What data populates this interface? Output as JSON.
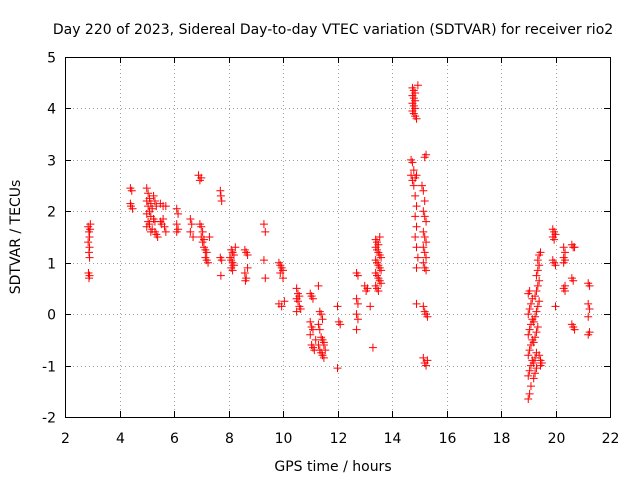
{
  "chart_data": {
    "type": "scatter",
    "title": "Day 220 of 2023, Sidereal Day-to-day VTEC variation (SDTVAR) for receiver rio2",
    "xlabel": "GPS time / hours",
    "ylabel": "SDTVAR / TECUs",
    "xlim": [
      2,
      22
    ],
    "ylim": [
      -2,
      5
    ],
    "xticks": [
      2,
      4,
      6,
      8,
      10,
      12,
      14,
      16,
      18,
      20,
      22
    ],
    "yticks": [
      -2,
      -1,
      0,
      1,
      2,
      3,
      4,
      5
    ],
    "grid": true,
    "marker": "+",
    "color": "#ff0000",
    "series": [
      {
        "name": "SDTVAR",
        "points": [
          [
            2.85,
            1.7
          ],
          [
            2.88,
            1.6
          ],
          [
            2.9,
            1.5
          ],
          [
            2.85,
            1.4
          ],
          [
            2.9,
            1.3
          ],
          [
            2.88,
            1.2
          ],
          [
            2.92,
            1.65
          ],
          [
            2.86,
            0.8
          ],
          [
            2.9,
            0.75
          ],
          [
            2.88,
            0.7
          ],
          [
            2.93,
            1.75
          ],
          [
            2.9,
            1.1
          ],
          [
            4.4,
            2.45
          ],
          [
            4.45,
            2.4
          ],
          [
            4.42,
            2.1
          ],
          [
            4.48,
            2.05
          ],
          [
            4.4,
            2.15
          ],
          [
            5.0,
            2.45
          ],
          [
            5.05,
            2.35
          ],
          [
            5.1,
            2.25
          ],
          [
            5.0,
            2.2
          ],
          [
            5.15,
            2.15
          ],
          [
            5.05,
            2.1
          ],
          [
            5.2,
            2.05
          ],
          [
            5.1,
            2.0
          ],
          [
            5.0,
            1.95
          ],
          [
            5.15,
            1.9
          ],
          [
            5.25,
            1.85
          ],
          [
            5.3,
            1.8
          ],
          [
            5.1,
            1.75
          ],
          [
            5.0,
            1.7
          ],
          [
            5.2,
            1.65
          ],
          [
            5.3,
            1.6
          ],
          [
            5.35,
            1.55
          ],
          [
            5.4,
            1.5
          ],
          [
            5.25,
            2.3
          ],
          [
            5.3,
            2.2
          ],
          [
            5.35,
            2.1
          ],
          [
            5.05,
            1.8
          ],
          [
            5.15,
            1.6
          ],
          [
            5.5,
            1.8
          ],
          [
            5.55,
            1.75
          ],
          [
            5.6,
            1.85
          ],
          [
            5.5,
            2.15
          ],
          [
            5.6,
            2.1
          ],
          [
            5.7,
            2.1
          ],
          [
            5.65,
            1.7
          ],
          [
            5.7,
            1.6
          ],
          [
            6.1,
            2.05
          ],
          [
            6.15,
            1.95
          ],
          [
            6.1,
            1.75
          ],
          [
            6.15,
            1.65
          ],
          [
            6.1,
            1.6
          ],
          [
            6.6,
            1.85
          ],
          [
            6.65,
            1.75
          ],
          [
            6.6,
            1.6
          ],
          [
            6.7,
            1.5
          ],
          [
            6.9,
            2.7
          ],
          [
            6.95,
            2.6
          ],
          [
            7.0,
            2.65
          ],
          [
            6.95,
            1.75
          ],
          [
            7.0,
            1.7
          ],
          [
            7.05,
            1.6
          ],
          [
            7.0,
            1.5
          ],
          [
            7.1,
            1.45
          ],
          [
            7.05,
            1.4
          ],
          [
            7.1,
            1.3
          ],
          [
            7.15,
            1.25
          ],
          [
            7.2,
            1.2
          ],
          [
            7.15,
            1.1
          ],
          [
            7.2,
            1.05
          ],
          [
            7.25,
            1.0
          ],
          [
            7.3,
            1.5
          ],
          [
            7.7,
            2.4
          ],
          [
            7.72,
            2.3
          ],
          [
            7.75,
            2.2
          ],
          [
            7.7,
            1.1
          ],
          [
            7.75,
            1.05
          ],
          [
            7.72,
            0.75
          ],
          [
            8.1,
            1.25
          ],
          [
            8.15,
            1.2
          ],
          [
            8.2,
            1.15
          ],
          [
            8.1,
            1.05
          ],
          [
            8.15,
            1.0
          ],
          [
            8.2,
            0.95
          ],
          [
            8.1,
            0.9
          ],
          [
            8.15,
            0.85
          ],
          [
            8.25,
            1.3
          ],
          [
            8.05,
            1.1
          ],
          [
            8.6,
            1.25
          ],
          [
            8.65,
            1.2
          ],
          [
            8.7,
            0.9
          ],
          [
            8.6,
            0.8
          ],
          [
            8.65,
            0.7
          ],
          [
            8.7,
            1.15
          ],
          [
            8.62,
            0.65
          ],
          [
            9.3,
            1.75
          ],
          [
            9.35,
            1.6
          ],
          [
            9.3,
            1.05
          ],
          [
            9.35,
            0.7
          ],
          [
            9.85,
            1.0
          ],
          [
            9.9,
            0.95
          ],
          [
            9.95,
            0.9
          ],
          [
            10.0,
            0.85
          ],
          [
            9.9,
            0.8
          ],
          [
            10.0,
            0.7
          ],
          [
            9.85,
            0.2
          ],
          [
            9.95,
            0.15
          ],
          [
            10.05,
            0.25
          ],
          [
            10.5,
            0.5
          ],
          [
            10.55,
            0.4
          ],
          [
            10.6,
            0.35
          ],
          [
            10.5,
            0.3
          ],
          [
            10.55,
            0.25
          ],
          [
            10.6,
            0.15
          ],
          [
            10.65,
            0.1
          ],
          [
            10.5,
            0.05
          ],
          [
            11.0,
            0.4
          ],
          [
            11.05,
            0.35
          ],
          [
            11.1,
            0.3
          ],
          [
            11.0,
            -0.15
          ],
          [
            11.05,
            -0.25
          ],
          [
            11.1,
            -0.3
          ],
          [
            11.0,
            -0.4
          ],
          [
            11.05,
            -0.6
          ],
          [
            11.1,
            -0.65
          ],
          [
            11.15,
            -0.7
          ],
          [
            11.2,
            -0.5
          ],
          [
            11.3,
            0.55
          ],
          [
            11.35,
            0.05
          ],
          [
            11.4,
            0.0
          ],
          [
            11.45,
            -0.1
          ],
          [
            11.3,
            -0.2
          ],
          [
            11.35,
            -0.3
          ],
          [
            11.4,
            -0.45
          ],
          [
            11.45,
            -0.5
          ],
          [
            11.5,
            -0.55
          ],
          [
            11.3,
            -0.6
          ],
          [
            11.35,
            -0.7
          ],
          [
            11.4,
            -0.75
          ],
          [
            11.45,
            -0.8
          ],
          [
            11.5,
            -0.85
          ],
          [
            11.55,
            -0.7
          ],
          [
            11.5,
            -0.6
          ],
          [
            12.0,
            0.15
          ],
          [
            12.05,
            -0.15
          ],
          [
            12.1,
            -0.2
          ],
          [
            12.0,
            -1.05
          ],
          [
            12.7,
            0.8
          ],
          [
            12.75,
            0.75
          ],
          [
            12.7,
            0.3
          ],
          [
            12.75,
            0.2
          ],
          [
            12.7,
            0.0
          ],
          [
            12.75,
            -0.1
          ],
          [
            12.7,
            -0.3
          ],
          [
            13.0,
            0.55
          ],
          [
            13.05,
            0.45
          ],
          [
            13.1,
            0.5
          ],
          [
            13.2,
            0.15
          ],
          [
            13.3,
            -0.65
          ],
          [
            13.4,
            1.45
          ],
          [
            13.45,
            1.4
          ],
          [
            13.5,
            1.35
          ],
          [
            13.4,
            1.3
          ],
          [
            13.45,
            1.25
          ],
          [
            13.5,
            1.2
          ],
          [
            13.55,
            1.15
          ],
          [
            13.6,
            1.1
          ],
          [
            13.4,
            1.05
          ],
          [
            13.45,
            1.0
          ],
          [
            13.5,
            0.95
          ],
          [
            13.55,
            0.9
          ],
          [
            13.6,
            0.85
          ],
          [
            13.4,
            0.8
          ],
          [
            13.45,
            0.75
          ],
          [
            13.5,
            0.7
          ],
          [
            13.55,
            0.65
          ],
          [
            13.6,
            0.6
          ],
          [
            13.4,
            0.55
          ],
          [
            13.45,
            0.5
          ],
          [
            13.5,
            0.45
          ],
          [
            13.55,
            1.5
          ],
          [
            14.7,
            3.0
          ],
          [
            14.75,
            2.95
          ],
          [
            14.8,
            2.8
          ],
          [
            14.7,
            2.7
          ],
          [
            14.75,
            2.6
          ],
          [
            14.85,
            2.65
          ],
          [
            14.9,
            2.7
          ],
          [
            14.8,
            2.5
          ],
          [
            14.85,
            2.3
          ],
          [
            14.9,
            2.1
          ],
          [
            14.85,
            1.9
          ],
          [
            14.9,
            1.7
          ],
          [
            14.85,
            1.5
          ],
          [
            14.9,
            1.3
          ],
          [
            14.95,
            1.1
          ],
          [
            14.9,
            0.9
          ],
          [
            14.9,
            0.2
          ],
          [
            14.75,
            4.4
          ],
          [
            14.8,
            4.35
          ],
          [
            14.85,
            4.3
          ],
          [
            14.75,
            4.25
          ],
          [
            14.8,
            4.2
          ],
          [
            14.85,
            4.15
          ],
          [
            14.75,
            4.1
          ],
          [
            14.8,
            4.05
          ],
          [
            14.85,
            4.0
          ],
          [
            14.75,
            3.95
          ],
          [
            14.8,
            3.9
          ],
          [
            14.85,
            3.85
          ],
          [
            14.9,
            3.8
          ],
          [
            14.95,
            4.45
          ],
          [
            15.1,
            2.5
          ],
          [
            15.15,
            2.4
          ],
          [
            15.2,
            2.2
          ],
          [
            15.25,
            3.1
          ],
          [
            15.2,
            3.05
          ],
          [
            15.15,
            2.0
          ],
          [
            15.2,
            1.9
          ],
          [
            15.25,
            1.8
          ],
          [
            15.15,
            1.6
          ],
          [
            15.2,
            1.5
          ],
          [
            15.25,
            1.4
          ],
          [
            15.15,
            1.3
          ],
          [
            15.2,
            1.2
          ],
          [
            15.25,
            1.1
          ],
          [
            15.15,
            1.0
          ],
          [
            15.2,
            0.9
          ],
          [
            15.25,
            0.85
          ],
          [
            15.15,
            0.15
          ],
          [
            15.2,
            0.05
          ],
          [
            15.25,
            0.0
          ],
          [
            15.3,
            -0.05
          ],
          [
            15.15,
            -0.85
          ],
          [
            15.2,
            -0.95
          ],
          [
            15.25,
            -1.0
          ],
          [
            15.3,
            -0.9
          ],
          [
            19.0,
            -1.65
          ],
          [
            19.05,
            -1.55
          ],
          [
            19.1,
            -1.4
          ],
          [
            19.0,
            -1.2
          ],
          [
            19.05,
            -1.1
          ],
          [
            19.1,
            -1.0
          ],
          [
            19.15,
            -0.9
          ],
          [
            19.0,
            -0.8
          ],
          [
            19.05,
            -0.7
          ],
          [
            19.1,
            -0.6
          ],
          [
            19.15,
            -0.5
          ],
          [
            19.0,
            -0.4
          ],
          [
            19.05,
            -0.3
          ],
          [
            19.1,
            -0.2
          ],
          [
            19.15,
            -0.1
          ],
          [
            19.0,
            0.0
          ],
          [
            19.05,
            0.1
          ],
          [
            19.1,
            0.2
          ],
          [
            19.15,
            0.3
          ],
          [
            19.0,
            0.4
          ],
          [
            19.05,
            0.45
          ],
          [
            19.2,
            -1.25
          ],
          [
            19.25,
            -1.15
          ],
          [
            19.3,
            -1.05
          ],
          [
            19.2,
            -0.95
          ],
          [
            19.25,
            -0.85
          ],
          [
            19.3,
            -0.75
          ],
          [
            19.2,
            -0.55
          ],
          [
            19.25,
            -0.45
          ],
          [
            19.3,
            -0.35
          ],
          [
            19.35,
            -0.25
          ],
          [
            19.2,
            -0.15
          ],
          [
            19.25,
            -0.05
          ],
          [
            19.3,
            0.05
          ],
          [
            19.35,
            0.15
          ],
          [
            19.4,
            0.25
          ],
          [
            19.25,
            0.35
          ],
          [
            19.3,
            0.45
          ],
          [
            19.35,
            0.55
          ],
          [
            19.4,
            0.65
          ],
          [
            19.3,
            0.75
          ],
          [
            19.35,
            0.85
          ],
          [
            19.4,
            0.95
          ],
          [
            19.35,
            1.05
          ],
          [
            19.4,
            1.15
          ],
          [
            19.45,
            1.2
          ],
          [
            19.4,
            -0.8
          ],
          [
            19.45,
            -0.9
          ],
          [
            19.5,
            -0.95
          ],
          [
            19.45,
            -1.0
          ],
          [
            19.9,
            1.65
          ],
          [
            19.95,
            1.6
          ],
          [
            20.0,
            1.55
          ],
          [
            19.9,
            1.5
          ],
          [
            19.95,
            1.45
          ],
          [
            19.9,
            1.05
          ],
          [
            19.95,
            1.0
          ],
          [
            20.0,
            0.95
          ],
          [
            20.0,
            0.15
          ],
          [
            20.3,
            1.3
          ],
          [
            20.35,
            1.2
          ],
          [
            20.3,
            1.1
          ],
          [
            20.35,
            1.05
          ],
          [
            20.3,
            1.0
          ],
          [
            20.35,
            0.55
          ],
          [
            20.3,
            0.5
          ],
          [
            20.35,
            0.45
          ],
          [
            20.6,
            1.35
          ],
          [
            20.65,
            1.3
          ],
          [
            20.7,
            1.3
          ],
          [
            20.6,
            0.7
          ],
          [
            20.65,
            0.65
          ],
          [
            20.6,
            -0.2
          ],
          [
            20.65,
            -0.25
          ],
          [
            20.7,
            -0.3
          ],
          [
            21.2,
            0.6
          ],
          [
            21.25,
            0.55
          ],
          [
            21.2,
            0.2
          ],
          [
            21.25,
            0.1
          ],
          [
            21.2,
            -0.05
          ],
          [
            21.25,
            -0.35
          ],
          [
            21.2,
            -0.4
          ]
        ]
      }
    ]
  }
}
